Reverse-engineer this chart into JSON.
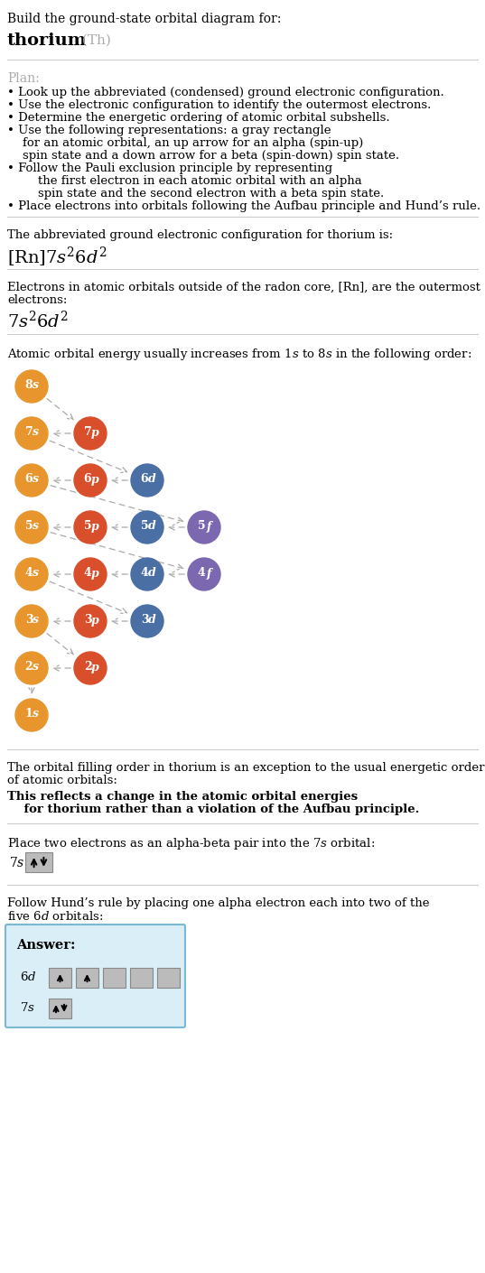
{
  "title_line1": "Build the ground-state orbital diagram for:",
  "title_bold": "thorium",
  "title_gray": " (Th)",
  "plan_title": "Plan:",
  "plan_items": [
    [
      "• Look up the abbreviated (condensed) ground electronic configuration."
    ],
    [
      "• Use the electronic configuration to identify the outermost electrons."
    ],
    [
      "• Determine the energetic ordering of atomic orbital subshells."
    ],
    [
      "• Use the following representations: a gray rectangle",
      "    for an atomic orbital, an up arrow for an alpha (spin-up)",
      "    spin state and a down arrow for a beta (spin-down) spin state."
    ],
    [
      "• Follow the Pauli exclusion principle by representing",
      "        the first electron in each atomic orbital with an alpha",
      "        spin state and the second electron with a beta spin state."
    ],
    [
      "• Place electrons into orbitals following the Aufbau principle and Hund’s rule."
    ]
  ],
  "config_title": "The abbreviated ground electronic configuration for thorium is:",
  "outer_title1": "Electrons in atomic orbitals outside of the radon core, [Rn], are the outermost",
  "outer_title2": "electrons:",
  "aufbau_title1": "Atomic orbital energy usually increases from 1",
  "aufbau_title2": "s to 8",
  "aufbau_title3": "s in the following order:",
  "exception_line1": "The orbital filling order in thorium is an exception to the usual energetic ordering",
  "exception_line2": "of atomic orbitals:",
  "exception_bold1": "This reflects a change in the atomic orbital energies",
  "exception_bold2": "    for thorium rather than a violation of the Aufbau principle.",
  "step1_title": "Place two electrons as an alpha-beta pair into the 7s orbital:",
  "step2_line1": "Follow Hund’s rule by placing one alpha electron each into two of the",
  "step2_line2": "five 6d orbitals:",
  "answer_label": "Answer:",
  "color_s": "#E8952D",
  "color_p": "#D94F2B",
  "color_d": "#4A6FA5",
  "color_f": "#7B68B0",
  "color_arrow": "#AAAAAA",
  "answer_bg": "#D9EEF7",
  "answer_border": "#7AB8D4",
  "bg_color": "#FFFFFF",
  "sep_color": "#CCCCCC",
  "orbital_gray": "#BBBBBB",
  "orbital_border": "#888888"
}
